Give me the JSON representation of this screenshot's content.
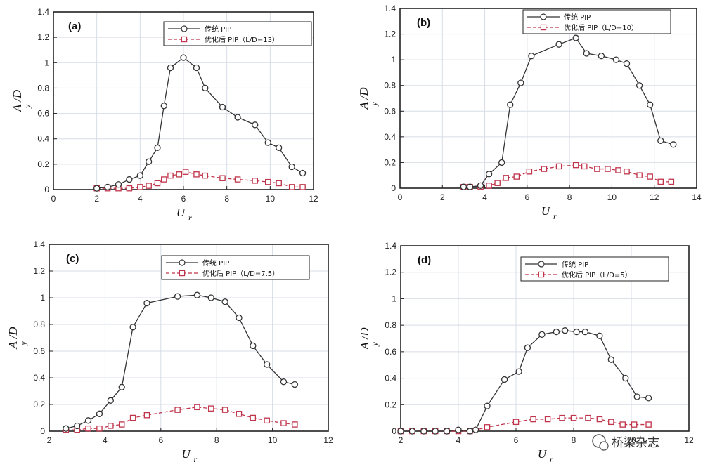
{
  "watermark": "桥梁杂志",
  "colors": {
    "trad": "#333333",
    "opt": "#c0354b",
    "grid": "#d7dde7",
    "frame": "#222222"
  },
  "chart_data": [
    {
      "type": "line",
      "panel_label": "(a)",
      "xlabel": "U",
      "xlabel_sub": "r",
      "ylabel": "A /D",
      "ylabel_sub": "y",
      "xlim": [
        0,
        12
      ],
      "ylim": [
        0,
        1.4
      ],
      "xticks": [
        0,
        2,
        4,
        6,
        8,
        10,
        12
      ],
      "yticks": [
        0,
        0.2,
        0.4,
        0.6,
        0.8,
        1,
        1.2,
        1.4
      ],
      "series": [
        {
          "name": "传统 PIP",
          "marker": "circle",
          "x": [
            2.0,
            2.5,
            3.0,
            3.5,
            4.0,
            4.4,
            4.8,
            5.1,
            5.4,
            6.0,
            6.6,
            7.0,
            7.8,
            8.5,
            9.3,
            9.9,
            10.4,
            11.0,
            11.5
          ],
          "y": [
            0.01,
            0.02,
            0.04,
            0.08,
            0.11,
            0.22,
            0.33,
            0.66,
            0.96,
            1.04,
            0.96,
            0.8,
            0.65,
            0.57,
            0.51,
            0.37,
            0.33,
            0.18,
            0.13
          ]
        },
        {
          "name": "优化后 PIP（L/D=13）",
          "marker": "square",
          "dashed": true,
          "x": [
            2.0,
            2.5,
            3.0,
            3.5,
            4.0,
            4.4,
            4.8,
            5.1,
            5.4,
            5.8,
            6.1,
            6.6,
            7.0,
            7.8,
            8.5,
            9.3,
            9.9,
            10.4,
            11.0,
            11.5
          ],
          "y": [
            0.01,
            0.01,
            0.01,
            0.01,
            0.02,
            0.03,
            0.05,
            0.08,
            0.11,
            0.12,
            0.14,
            0.12,
            0.11,
            0.09,
            0.08,
            0.07,
            0.06,
            0.05,
            0.02,
            0.02
          ]
        }
      ]
    },
    {
      "type": "line",
      "panel_label": "(b)",
      "xlabel": "U",
      "xlabel_sub": "r",
      "ylabel": "A /D",
      "ylabel_sub": "y",
      "xlim": [
        0,
        14
      ],
      "ylim": [
        0,
        1.4
      ],
      "xticks": [
        0,
        2,
        4,
        6,
        8,
        10,
        12,
        14
      ],
      "yticks": [
        0,
        0.2,
        0.4,
        0.6,
        0.8,
        1,
        1.2,
        1.4
      ],
      "series": [
        {
          "name": "传统 PIP",
          "marker": "circle",
          "x": [
            3.0,
            3.3,
            3.8,
            4.2,
            4.8,
            5.2,
            5.7,
            6.2,
            7.5,
            8.3,
            8.8,
            9.5,
            10.2,
            10.7,
            11.3,
            11.8,
            12.3,
            12.9
          ],
          "y": [
            0.01,
            0.01,
            0.02,
            0.11,
            0.2,
            0.65,
            0.82,
            1.03,
            1.12,
            1.17,
            1.05,
            1.03,
            1.0,
            0.97,
            0.8,
            0.65,
            0.37,
            0.34
          ]
        },
        {
          "name": "优化后 PIP（L/D=10）",
          "marker": "square",
          "dashed": true,
          "x": [
            3.0,
            3.3,
            3.8,
            4.2,
            4.6,
            5.0,
            5.5,
            6.1,
            6.8,
            7.5,
            8.3,
            8.7,
            9.3,
            9.8,
            10.3,
            10.7,
            11.3,
            11.8,
            12.3,
            12.8
          ],
          "y": [
            0.01,
            0.01,
            0.01,
            0.02,
            0.04,
            0.08,
            0.09,
            0.13,
            0.15,
            0.17,
            0.18,
            0.17,
            0.15,
            0.15,
            0.14,
            0.13,
            0.1,
            0.09,
            0.05,
            0.05
          ]
        }
      ]
    },
    {
      "type": "line",
      "panel_label": "(c)",
      "xlabel": "U",
      "xlabel_sub": "r",
      "ylabel": "A /D",
      "ylabel_sub": "y",
      "xlim": [
        2,
        12
      ],
      "ylim": [
        0,
        1.4
      ],
      "xticks": [
        2,
        4,
        6,
        8,
        10,
        12
      ],
      "yticks": [
        0,
        0.2,
        0.4,
        0.6,
        0.8,
        1,
        1.2,
        1.4
      ],
      "series": [
        {
          "name": "传统 PIP",
          "marker": "circle",
          "x": [
            2.6,
            3.0,
            3.4,
            3.8,
            4.2,
            4.6,
            5.0,
            5.5,
            6.6,
            7.3,
            7.8,
            8.3,
            8.8,
            9.3,
            9.8,
            10.4,
            10.8
          ],
          "y": [
            0.02,
            0.04,
            0.08,
            0.13,
            0.23,
            0.33,
            0.78,
            0.96,
            1.01,
            1.02,
            1.0,
            0.97,
            0.85,
            0.64,
            0.5,
            0.37,
            0.35
          ]
        },
        {
          "name": "优化后 PIP（L/D=7.5）",
          "marker": "square",
          "dashed": true,
          "x": [
            2.6,
            3.0,
            3.4,
            3.8,
            4.2,
            4.6,
            5.0,
            5.5,
            6.6,
            7.3,
            7.8,
            8.3,
            8.8,
            9.3,
            9.8,
            10.4,
            10.8
          ],
          "y": [
            0.01,
            0.01,
            0.02,
            0.02,
            0.04,
            0.05,
            0.1,
            0.12,
            0.16,
            0.18,
            0.17,
            0.16,
            0.13,
            0.1,
            0.08,
            0.06,
            0.05
          ]
        }
      ]
    },
    {
      "type": "line",
      "panel_label": "(d)",
      "xlabel": "U",
      "xlabel_sub": "r",
      "ylabel": "A /D",
      "ylabel_sub": "y",
      "xlim": [
        2,
        12
      ],
      "ylim": [
        0,
        1.4
      ],
      "xticks": [
        2,
        4,
        6,
        8,
        10,
        12
      ],
      "yticks": [
        0,
        0.2,
        0.4,
        0.6,
        0.8,
        1,
        1.2,
        1.4
      ],
      "series": [
        {
          "name": "传统 PIP",
          "marker": "circle",
          "x": [
            2.0,
            2.4,
            2.8,
            3.2,
            3.6,
            4.0,
            4.4,
            4.6,
            5.0,
            5.6,
            6.1,
            6.4,
            6.9,
            7.4,
            7.7,
            8.1,
            8.4,
            8.9,
            9.3,
            9.8,
            10.2,
            10.6
          ],
          "y": [
            0.0,
            0.0,
            0.0,
            0.0,
            0.0,
            0.01,
            0.0,
            0.01,
            0.19,
            0.39,
            0.45,
            0.63,
            0.73,
            0.75,
            0.76,
            0.75,
            0.75,
            0.72,
            0.54,
            0.4,
            0.26,
            0.25
          ]
        },
        {
          "name": "优化后 PIP（L/D=5）",
          "marker": "square",
          "dashed": true,
          "x": [
            2.0,
            2.4,
            2.8,
            3.2,
            3.6,
            4.0,
            4.4,
            5.0,
            6.0,
            6.6,
            7.1,
            7.6,
            8.0,
            8.5,
            8.9,
            9.3,
            9.7,
            10.1,
            10.6
          ],
          "y": [
            0.0,
            0.0,
            0.0,
            0.0,
            0.0,
            0.0,
            0.0,
            0.03,
            0.07,
            0.09,
            0.09,
            0.1,
            0.1,
            0.1,
            0.09,
            0.07,
            0.05,
            0.05,
            0.05
          ]
        }
      ]
    }
  ]
}
